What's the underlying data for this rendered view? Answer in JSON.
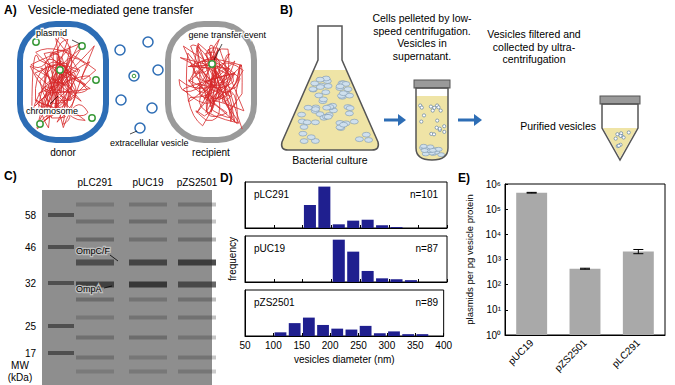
{
  "panels": {
    "A": {
      "label": "A)",
      "title": "Vesicle-mediated gene transfer",
      "labels": {
        "plasmid": "plasmid",
        "chromosome": "chromosome",
        "donor": "donor",
        "vesicle": "extracellular vesicle",
        "event": "gene transfer event",
        "recipient": "recipient"
      }
    },
    "B": {
      "label": "B)",
      "steps": [
        "Bacterial culture",
        "Cells pelleted by low-speed centrifugation. Vesicles in supernatant.",
        "Vesicles filtered and collected by ultra-centrifugation",
        "Purified vesicles"
      ]
    },
    "C": {
      "label": "C)",
      "lanes": [
        "pLC291",
        "pUC19",
        "pZS2501"
      ],
      "markers": [
        58,
        46,
        32,
        25,
        17
      ],
      "marker_axis": "MW (kDa)",
      "bands": [
        "OmpC/F",
        "OmpA"
      ]
    },
    "D": {
      "label": "D)"
    },
    "E": {
      "label": "E)"
    }
  },
  "chart_data": [
    {
      "type": "histogram",
      "title": "pLC291",
      "annotation": "n=101",
      "color": "#1f1f8f",
      "bins": [
        50,
        75,
        100,
        125,
        150,
        175,
        200,
        225,
        250,
        275,
        300,
        325,
        350,
        375,
        400
      ],
      "counts": [
        0,
        0,
        0,
        0,
        0.25,
        0.45,
        0.04,
        0.08,
        0.09,
        0.03,
        0.01,
        0,
        0,
        0
      ],
      "xlim": [
        50,
        400
      ],
      "xticks": [
        50,
        100,
        150,
        200,
        250,
        300,
        350,
        400
      ],
      "ylim": [
        0,
        0.5
      ],
      "tick_labels": false,
      "grid": false
    },
    {
      "type": "histogram",
      "title": "pUC19",
      "annotation": "n=87",
      "color": "#1f1f8f",
      "ylabel": "frequency",
      "bins": [
        50,
        75,
        100,
        125,
        150,
        175,
        200,
        225,
        250,
        275,
        300,
        325,
        350,
        375,
        400
      ],
      "counts": [
        0,
        0,
        0,
        0,
        0,
        0,
        0.46,
        0.33,
        0.12,
        0.04,
        0.03,
        0.02,
        0,
        0
      ],
      "xlim": [
        50,
        400
      ],
      "xticks": [
        50,
        100,
        150,
        200,
        250,
        300,
        350,
        400
      ],
      "ylim": [
        0,
        0.5
      ],
      "tick_labels": false,
      "grid": false
    },
    {
      "type": "histogram",
      "title": "pZS2501",
      "annotation": "n=89",
      "color": "#1f1f8f",
      "xlabel": "vesicles diameter (nm)",
      "bins": [
        50,
        75,
        100,
        125,
        150,
        175,
        200,
        225,
        250,
        275,
        300,
        325,
        350,
        375,
        400
      ],
      "counts": [
        0,
        0,
        0.04,
        0.14,
        0.2,
        0.12,
        0.08,
        0.07,
        0.11,
        0.03,
        0.05,
        0.02,
        0.02,
        0
      ],
      "xlim": [
        50,
        400
      ],
      "xticks": [
        50,
        100,
        150,
        200,
        250,
        300,
        350,
        400
      ],
      "ylim": [
        0,
        0.5
      ],
      "tick_labels": "x",
      "grid": false
    },
    {
      "type": "bar",
      "ylabel": "plasmids per pg vesicle protein",
      "categories": [
        "pUC19",
        "pZS2501",
        "pLC291"
      ],
      "values": [
        450000,
        430,
        2100
      ],
      "errors": [
        15000,
        20,
        400
      ],
      "color": "#a9a9a9",
      "log": "y",
      "grid": false,
      "ylim": [
        1,
        1000000
      ],
      "yticks": [
        {
          "value": 1,
          "label": "10⁰"
        },
        {
          "value": 10,
          "label": "10¹"
        },
        {
          "value": 100,
          "label": "10²"
        },
        {
          "value": 1000,
          "label": "10³"
        },
        {
          "value": 10000,
          "label": "10⁴"
        },
        {
          "value": 100000,
          "label": "10⁵"
        },
        {
          "value": 1000000,
          "label": "10⁶"
        }
      ]
    }
  ]
}
